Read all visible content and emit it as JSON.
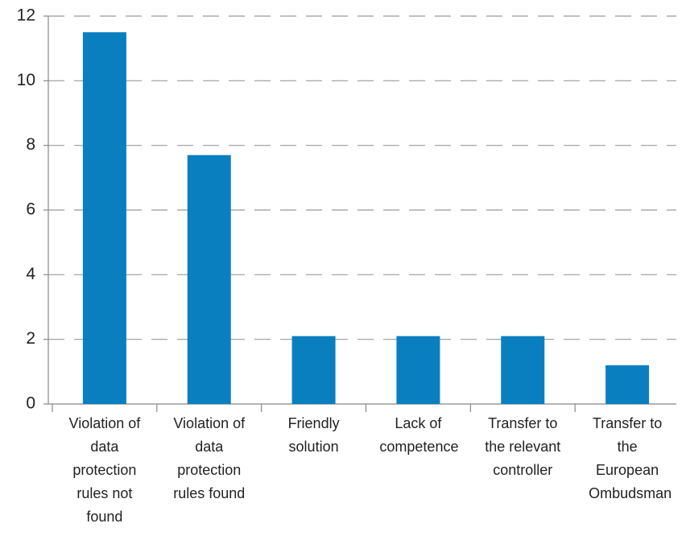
{
  "chart_data": {
    "type": "bar",
    "categories": [
      "Violation of data protection rules not found",
      "Violation of data protection rules found",
      "Friendly solution",
      "Lack of competence",
      "Transfer to the relevant controller",
      "Transfer to the European Ombudsman"
    ],
    "values": [
      11.5,
      7.7,
      2.1,
      2.1,
      2.1,
      1.2
    ],
    "color": "#0a7fc0",
    "ylim": [
      0,
      12
    ],
    "yticks": [
      0,
      2,
      4,
      6,
      8,
      10,
      12
    ],
    "grid": true
  }
}
